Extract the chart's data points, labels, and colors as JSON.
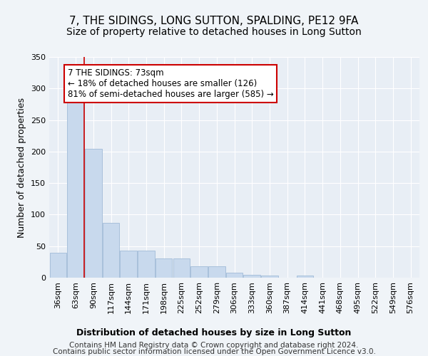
{
  "title": "7, THE SIDINGS, LONG SUTTON, SPALDING, PE12 9FA",
  "subtitle": "Size of property relative to detached houses in Long Sutton",
  "xlabel": "Distribution of detached houses by size in Long Sutton",
  "ylabel": "Number of detached properties",
  "categories": [
    "36sqm",
    "63sqm",
    "90sqm",
    "117sqm",
    "144sqm",
    "171sqm",
    "198sqm",
    "225sqm",
    "252sqm",
    "279sqm",
    "306sqm",
    "333sqm",
    "360sqm",
    "387sqm",
    "414sqm",
    "441sqm",
    "468sqm",
    "495sqm",
    "522sqm",
    "549sqm",
    "576sqm"
  ],
  "values": [
    40,
    290,
    204,
    87,
    43,
    43,
    30,
    30,
    18,
    18,
    8,
    5,
    3,
    0,
    3,
    0,
    0,
    0,
    0,
    0,
    0
  ],
  "bar_color": "#c8d9ed",
  "bar_edge_color": "#a8c0db",
  "red_line_x": 1.5,
  "annotation_text": "7 THE SIDINGS: 73sqm\n← 18% of detached houses are smaller (126)\n81% of semi-detached houses are larger (585) →",
  "annotation_box_color": "#ffffff",
  "annotation_box_edge": "#cc0000",
  "ylim": [
    0,
    350
  ],
  "yticks": [
    0,
    50,
    100,
    150,
    200,
    250,
    300,
    350
  ],
  "footer1": "Contains HM Land Registry data © Crown copyright and database right 2024.",
  "footer2": "Contains public sector information licensed under the Open Government Licence v3.0.",
  "bg_color": "#f0f4f8",
  "plot_bg_color": "#e8eef5",
  "grid_color": "#ffffff",
  "red_line_color": "#cc0000",
  "title_fontsize": 11,
  "subtitle_fontsize": 10,
  "axis_label_fontsize": 9,
  "tick_fontsize": 8,
  "footer_fontsize": 7.5,
  "annotation_fontsize": 8.5
}
